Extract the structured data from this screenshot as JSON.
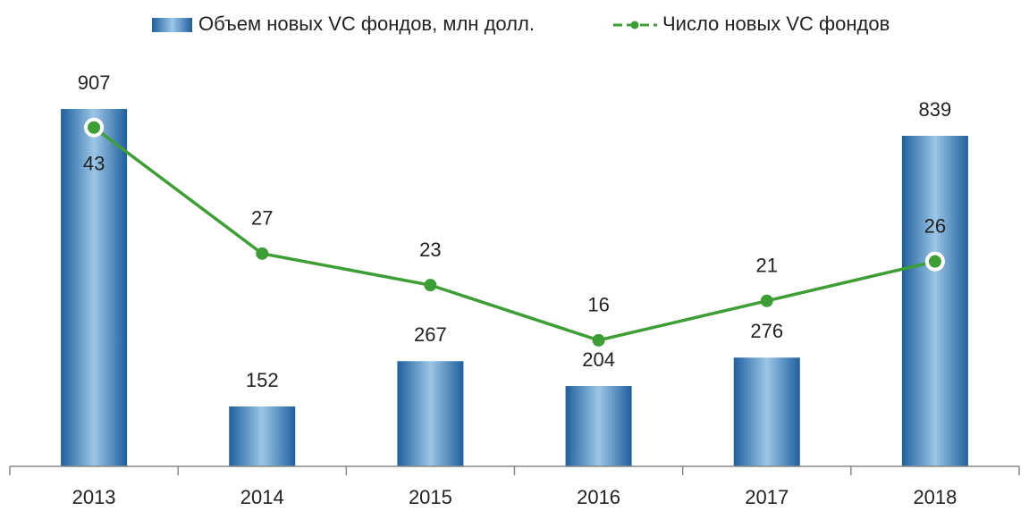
{
  "chart_data": {
    "type": "bar_line",
    "categories": [
      "2013",
      "2014",
      "2015",
      "2016",
      "2017",
      "2018"
    ],
    "series": [
      {
        "name": "Объем новых VC фондов, млн долл.",
        "type": "bar",
        "color": "#2e75b6",
        "values": [
          907,
          152,
          267,
          204,
          276,
          839
        ]
      },
      {
        "name": "Число новых VC фондов",
        "type": "line",
        "color": "#3c9e34",
        "axis": "y2",
        "values": [
          43,
          27,
          23,
          16,
          21,
          26
        ]
      }
    ],
    "ylim": [
      0,
      1000
    ],
    "y2lim": [
      0,
      50
    ],
    "grid": false,
    "legend": "top"
  }
}
